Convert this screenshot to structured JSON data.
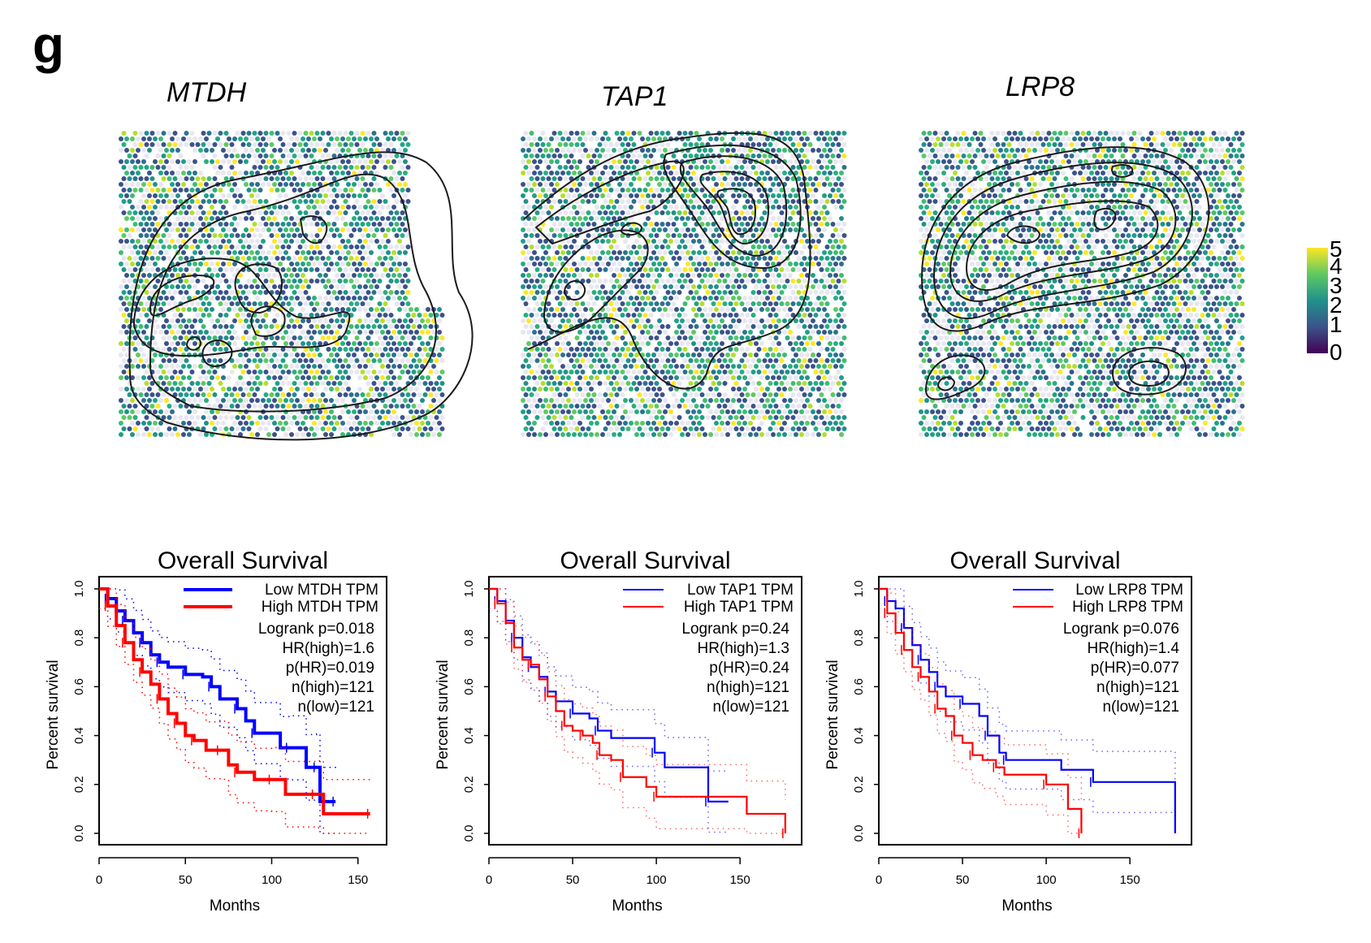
{
  "panel_label": "g",
  "spatial_maps": [
    {
      "gene": "MTDH"
    },
    {
      "gene": "TAP1"
    },
    {
      "gene": "LRP8"
    }
  ],
  "colorbar": {
    "ticks": [
      "0",
      "1",
      "2",
      "3",
      "4",
      "5"
    ],
    "colors": [
      "#440154",
      "#3b528b",
      "#21918c",
      "#5ec962",
      "#fde725"
    ],
    "range": [
      0,
      5
    ]
  },
  "chart_data": [
    {
      "type": "line",
      "title": "Overall Survival",
      "xlabel": "Months",
      "ylabel": "Percent survival",
      "xlim": [
        0,
        160
      ],
      "ylim": [
        0,
        1.0
      ],
      "xticks": [
        "0",
        "50",
        "100",
        "150"
      ],
      "yticks": [
        "0.0",
        "0.2",
        "0.4",
        "0.6",
        "0.8",
        "1.0"
      ],
      "legend": [
        "Low MTDH TPM",
        "High MTDH TPM"
      ],
      "stats": [
        "Logrank p=0.018",
        "HR(high)=1.6",
        "p(HR)=0.019",
        "n(high)=121",
        "n(low)=121"
      ],
      "legend_position": "top-right",
      "series": [
        {
          "name": "Low MTDH TPM",
          "color": "#0000ff",
          "x": [
            0,
            5,
            10,
            15,
            20,
            25,
            30,
            35,
            40,
            50,
            60,
            65,
            70,
            80,
            85,
            90,
            105,
            110,
            120,
            126,
            128,
            137
          ],
          "y": [
            1.0,
            0.96,
            0.91,
            0.87,
            0.82,
            0.78,
            0.73,
            0.7,
            0.68,
            0.65,
            0.64,
            0.6,
            0.55,
            0.51,
            0.46,
            0.41,
            0.35,
            0.35,
            0.27,
            0.27,
            0.13,
            0.13
          ]
        },
        {
          "name": "High MTDH TPM",
          "color": "#ff0000",
          "x": [
            0,
            5,
            10,
            15,
            20,
            25,
            30,
            35,
            40,
            45,
            50,
            55,
            62,
            70,
            75,
            80,
            90,
            100,
            108,
            125,
            130,
            157
          ],
          "y": [
            1.0,
            0.93,
            0.85,
            0.78,
            0.71,
            0.66,
            0.61,
            0.55,
            0.49,
            0.45,
            0.4,
            0.38,
            0.34,
            0.34,
            0.28,
            0.25,
            0.22,
            0.22,
            0.16,
            0.16,
            0.08,
            0.08
          ]
        }
      ]
    },
    {
      "type": "line",
      "title": "Overall Survival",
      "xlabel": "Months",
      "ylabel": "Percent survival",
      "xlim": [
        0,
        180
      ],
      "ylim": [
        0,
        1.0
      ],
      "xticks": [
        "0",
        "50",
        "100",
        "150"
      ],
      "yticks": [
        "0.0",
        "0.2",
        "0.4",
        "0.6",
        "0.8",
        "1.0"
      ],
      "legend": [
        "Low TAP1 TPM",
        "High TAP1 TPM"
      ],
      "stats": [
        "Logrank p=0.24",
        "HR(high)=1.3",
        "p(HR)=0.24",
        "n(high)=121",
        "n(low)=121"
      ],
      "legend_position": "top-right",
      "series": [
        {
          "name": "Low TAP1 TPM",
          "color": "#0000ff",
          "x": [
            0,
            5,
            10,
            15,
            20,
            25,
            30,
            35,
            40,
            50,
            60,
            65,
            73,
            99,
            105,
            131,
            143
          ],
          "y": [
            1.0,
            0.95,
            0.87,
            0.8,
            0.72,
            0.68,
            0.64,
            0.58,
            0.54,
            0.49,
            0.47,
            0.42,
            0.39,
            0.33,
            0.27,
            0.13,
            0.13
          ]
        },
        {
          "name": "High TAP1 TPM",
          "color": "#ff0000",
          "x": [
            0,
            5,
            10,
            15,
            20,
            25,
            30,
            35,
            40,
            45,
            50,
            56,
            62,
            66,
            73,
            80,
            94,
            100,
            154,
            177
          ],
          "y": [
            1.0,
            0.94,
            0.86,
            0.76,
            0.71,
            0.69,
            0.63,
            0.56,
            0.5,
            0.44,
            0.42,
            0.4,
            0.37,
            0.32,
            0.3,
            0.23,
            0.19,
            0.15,
            0.08,
            0.0
          ]
        }
      ]
    },
    {
      "type": "line",
      "title": "Overall Survival",
      "xlabel": "Months",
      "ylabel": "Percent survival",
      "xlim": [
        0,
        180
      ],
      "ylim": [
        0,
        1.0
      ],
      "xticks": [
        "0",
        "50",
        "100",
        "150"
      ],
      "yticks": [
        "0.0",
        "0.2",
        "0.4",
        "0.6",
        "0.8",
        "1.0"
      ],
      "legend": [
        "Low LRP8 TPM",
        "High LRP8 TPM"
      ],
      "stats": [
        "Logrank p=0.076",
        "HR(high)=1.4",
        "p(HR)=0.077",
        "n(high)=121",
        "n(low)=121"
      ],
      "legend_position": "top-right",
      "series": [
        {
          "name": "Low LRP8 TPM",
          "color": "#0000ff",
          "x": [
            0,
            5,
            10,
            15,
            20,
            25,
            30,
            35,
            40,
            50,
            60,
            65,
            72,
            76,
            109,
            128,
            177
          ],
          "y": [
            1.0,
            0.95,
            0.92,
            0.84,
            0.77,
            0.71,
            0.66,
            0.6,
            0.56,
            0.53,
            0.48,
            0.4,
            0.33,
            0.3,
            0.26,
            0.21,
            0.0
          ]
        },
        {
          "name": "High LRP8 TPM",
          "color": "#ff0000",
          "x": [
            0,
            5,
            10,
            15,
            20,
            25,
            30,
            35,
            40,
            45,
            50,
            56,
            62,
            70,
            75,
            100,
            113,
            121
          ],
          "y": [
            1.0,
            0.9,
            0.82,
            0.75,
            0.68,
            0.64,
            0.58,
            0.51,
            0.48,
            0.4,
            0.37,
            0.32,
            0.3,
            0.27,
            0.24,
            0.2,
            0.1,
            0.0
          ]
        }
      ]
    }
  ]
}
